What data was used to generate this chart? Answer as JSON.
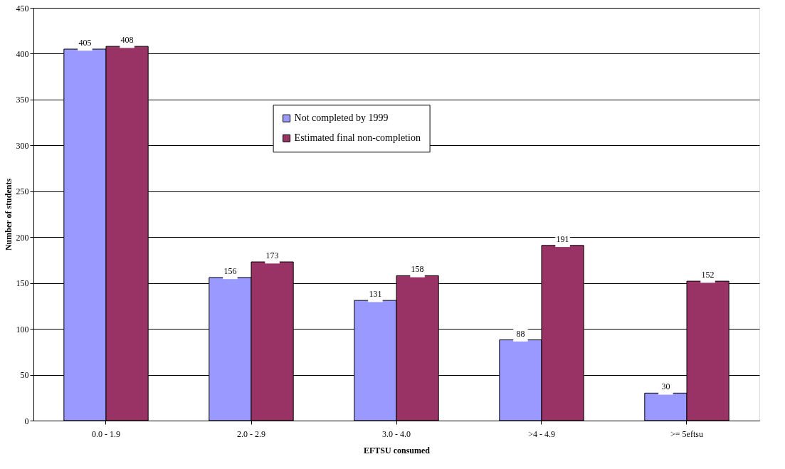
{
  "chart_data": {
    "type": "bar",
    "xlabel": "EFTSU consumed",
    "ylabel": "Number of students",
    "categories": [
      "0.0 - 1.9",
      "2.0 - 2.9",
      "3.0 - 4.0",
      ">4 - 4.9",
      ">= 5eftsu"
    ],
    "series": [
      {
        "name": "Not completed by 1999",
        "color": "#9999ff",
        "values": [
          405,
          156,
          131,
          88,
          30
        ]
      },
      {
        "name": "Estimated final non-completion",
        "color": "#993366",
        "values": [
          408,
          173,
          158,
          191,
          152
        ]
      }
    ],
    "ylim": [
      0,
      450
    ],
    "yticks": [
      0,
      50,
      100,
      150,
      200,
      250,
      300,
      350,
      400,
      450
    ],
    "grid": "y",
    "legend": "top",
    "data_labels": true
  }
}
